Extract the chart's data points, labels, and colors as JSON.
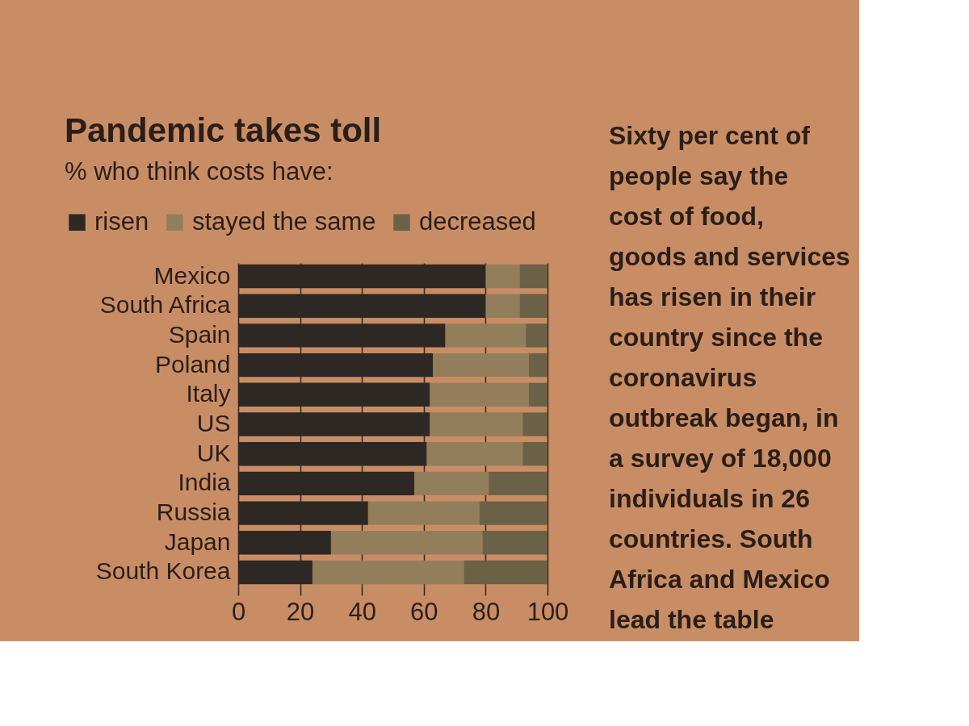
{
  "chart_data": {
    "type": "bar",
    "orientation": "horizontal",
    "stacked": true,
    "title": "Pandemic takes toll",
    "subtitle": "% who think costs have:",
    "categories": [
      "Mexico",
      "South Africa",
      "Spain",
      "Poland",
      "Italy",
      "US",
      "UK",
      "India",
      "Russia",
      "Japan",
      "South Korea"
    ],
    "series": [
      {
        "name": "risen",
        "color": "#2d2824",
        "values": [
          80,
          80,
          67,
          63,
          62,
          62,
          61,
          57,
          42,
          30,
          24
        ]
      },
      {
        "name": "stayed the same",
        "color": "#937e5c",
        "values": [
          11,
          11,
          26,
          31,
          32,
          30,
          31,
          24,
          36,
          49,
          49
        ]
      },
      {
        "name": "decreased",
        "color": "#6b6146",
        "values": [
          9,
          9,
          7,
          6,
          6,
          8,
          8,
          19,
          22,
          21,
          27
        ]
      }
    ],
    "xlim": [
      0,
      100
    ],
    "xticks": [
      0,
      20,
      40,
      60,
      80,
      100
    ],
    "grid": "x",
    "legend": "top left",
    "annotations": [
      "Sixty per cent of people say the cost of food, goods and services has risen in their country since the coronavirus outbreak began, in a survey of 18,000 individuals in 26 countries. South Africa and Mexico lead the table"
    ]
  }
}
